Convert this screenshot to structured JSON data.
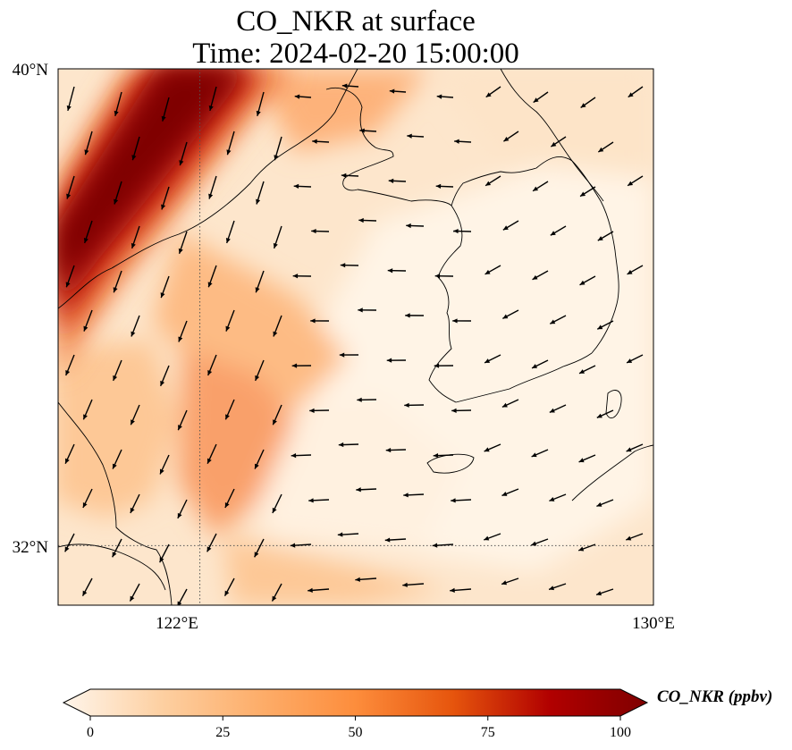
{
  "title": {
    "line1": "CO_NKR at surface",
    "line2": "Time: 2024-02-20 15:00:00"
  },
  "map": {
    "extent": {
      "lon": [
        119.5,
        130
      ],
      "lat": [
        31,
        40
      ]
    },
    "lat_ticks": [
      {
        "value": 40,
        "label": "40°N"
      },
      {
        "value": 32,
        "label": "32°N"
      }
    ],
    "lon_ticks": [
      {
        "value": 122,
        "label": "122°E"
      },
      {
        "value": 130,
        "label": "130°E"
      }
    ],
    "gridlines": {
      "lat": [
        32
      ],
      "lon": [
        122
      ],
      "style": "dotted"
    },
    "field": "CO_NKR",
    "features": [
      "coastline",
      "wind-vectors",
      "concentration-field"
    ]
  },
  "colorbar": {
    "label": "CO_NKR (ppbv)",
    "min": 0,
    "max": 100,
    "ticks": [
      {
        "value": 0,
        "label": "0"
      },
      {
        "value": 25,
        "label": "25"
      },
      {
        "value": 50,
        "label": "50"
      },
      {
        "value": 75,
        "label": "75"
      },
      {
        "value": 100,
        "label": "100"
      }
    ],
    "colormap": [
      "#fff5eb",
      "#fdd0a2",
      "#fdae6b",
      "#fd8d3c",
      "#e6550d",
      "#b10000",
      "#7f0000"
    ],
    "extend": "both"
  }
}
